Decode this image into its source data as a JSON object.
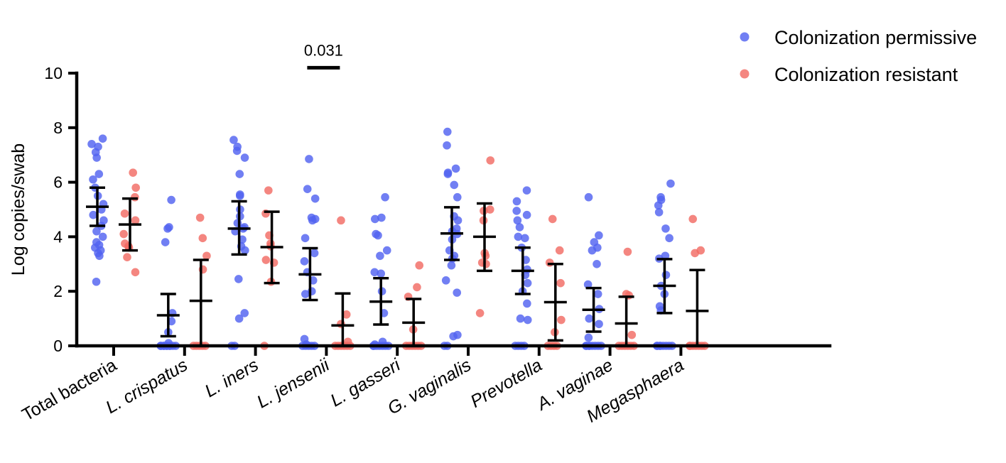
{
  "colors": {
    "permissive": "#5263f0",
    "resistant": "#f26b64"
  },
  "chart_data": {
    "type": "scatter",
    "subtype": "dot-plot-with-mean-and-error",
    "title": "",
    "ylabel": "Log copies/swab",
    "xlabel": "",
    "ylim": [
      0,
      10
    ],
    "yticks": [
      0,
      2,
      4,
      6,
      8,
      10
    ],
    "grid": false,
    "legend": {
      "placement": "top-right",
      "entries": [
        "Colonization permissive",
        "Colonization resistant"
      ]
    },
    "categories": [
      "Total bacteria",
      "L. crispatus",
      "L. iners",
      "L. jensenii",
      "L. gasseri",
      "G. vaginalis",
      "Prevotella",
      "A. vaginae",
      "Megasphaera"
    ],
    "italic_categories": [
      false,
      true,
      true,
      true,
      true,
      true,
      true,
      true,
      true
    ],
    "series": [
      {
        "name": "Colonization permissive",
        "color_key": "permissive",
        "groups": [
          {
            "mean": 5.1,
            "upper": 5.8,
            "lower": 4.4,
            "points": [
              7.6,
              7.4,
              7.3,
              7.1,
              6.9,
              6.3,
              6.1,
              5.8,
              5.5,
              5.2,
              5.0,
              4.8,
              4.6,
              4.4,
              4.2,
              4.0,
              3.8,
              3.7,
              3.6,
              3.5,
              3.4,
              3.3,
              2.35
            ]
          },
          {
            "mean": 1.12,
            "upper": 1.9,
            "lower": 0.35,
            "points": [
              5.35,
              4.35,
              4.3,
              3.8,
              1.2,
              0.9,
              0.5,
              0.1,
              0,
              0,
              0,
              0,
              0,
              0,
              0,
              0,
              0,
              0
            ]
          },
          {
            "mean": 4.3,
            "upper": 5.3,
            "lower": 3.35,
            "points": [
              7.55,
              7.3,
              7.15,
              6.9,
              6.3,
              5.55,
              5.5,
              5.0,
              4.75,
              4.5,
              4.35,
              4.3,
              4.2,
              3.9,
              3.65,
              3.5,
              2.45,
              1.2,
              1.0,
              0,
              0
            ]
          },
          {
            "mean": 2.62,
            "upper": 3.58,
            "lower": 1.68,
            "points": [
              6.85,
              5.75,
              5.4,
              4.7,
              4.65,
              4.6,
              3.95,
              3.4,
              3.1,
              2.7,
              2.4,
              2.0,
              1.9,
              0.25,
              0.05,
              0,
              0,
              0,
              0,
              0
            ]
          },
          {
            "mean": 1.62,
            "upper": 2.48,
            "lower": 0.78,
            "points": [
              5.45,
              4.7,
              4.65,
              4.1,
              4.05,
              3.5,
              3.3,
              2.7,
              2.65,
              2.0,
              1.2,
              0.15,
              0.05,
              0,
              0,
              0,
              0,
              0,
              0,
              0
            ]
          },
          {
            "mean": 4.12,
            "upper": 5.08,
            "lower": 3.15,
            "points": [
              7.85,
              7.35,
              6.5,
              6.35,
              6.3,
              5.9,
              5.45,
              4.75,
              4.6,
              4.3,
              4.2,
              4.1,
              3.9,
              3.5,
              3.3,
              3.2,
              2.95,
              2.4,
              1.95,
              0.4,
              0.35,
              0,
              0
            ]
          },
          {
            "mean": 2.75,
            "upper": 3.6,
            "lower": 1.9,
            "points": [
              5.7,
              5.3,
              4.95,
              4.8,
              4.6,
              4.35,
              4.0,
              3.95,
              3.6,
              3.15,
              2.8,
              2.6,
              2.3,
              2.0,
              1.55,
              1.0,
              0.95,
              0,
              0,
              0,
              0
            ]
          },
          {
            "mean": 1.32,
            "upper": 2.12,
            "lower": 0.52,
            "points": [
              5.45,
              4.05,
              3.8,
              3.6,
              3.5,
              3.0,
              2.25,
              1.9,
              1.35,
              1.0,
              0.8,
              0.3,
              0,
              0,
              0,
              0,
              0,
              0,
              0,
              0
            ]
          },
          {
            "mean": 2.2,
            "upper": 3.18,
            "lower": 1.2,
            "points": [
              5.95,
              5.45,
              5.35,
              5.15,
              4.9,
              4.3,
              3.95,
              3.3,
              3.2,
              2.6,
              2.2,
              1.9,
              1.45,
              1.3,
              0,
              0,
              0,
              0,
              0,
              0,
              0,
              0
            ]
          }
        ]
      },
      {
        "name": "Colonization resistant",
        "color_key": "resistant",
        "groups": [
          {
            "mean": 4.45,
            "upper": 5.4,
            "lower": 3.5,
            "points": [
              6.35,
              5.8,
              5.45,
              4.85,
              4.6,
              4.1,
              3.75,
              3.65,
              3.6,
              3.25,
              2.7
            ]
          },
          {
            "mean": 1.65,
            "upper": 3.15,
            "lower": 0.0,
            "points": [
              4.7,
              3.95,
              3.3,
              2.8,
              0,
              0,
              0,
              0,
              0
            ]
          },
          {
            "mean": 3.62,
            "upper": 4.92,
            "lower": 2.3,
            "points": [
              5.7,
              4.85,
              4.05,
              3.75,
              3.65,
              3.15,
              3.05,
              2.35,
              0.0
            ]
          },
          {
            "mean": 0.75,
            "upper": 1.92,
            "lower": 0.0,
            "points": [
              4.6,
              1.15,
              0.8,
              0.15,
              0,
              0,
              0,
              0,
              0,
              0
            ]
          },
          {
            "mean": 0.85,
            "upper": 1.72,
            "lower": 0.0,
            "points": [
              2.95,
              2.15,
              1.8,
              0.6,
              0,
              0,
              0,
              0,
              0,
              0
            ]
          },
          {
            "mean": 4.0,
            "upper": 5.22,
            "lower": 2.75,
            "points": [
              6.8,
              5.0,
              4.95,
              4.6,
              3.4,
              3.3,
              3.05,
              3.0,
              1.2
            ]
          },
          {
            "mean": 1.6,
            "upper": 3.0,
            "lower": 0.2,
            "points": [
              4.65,
              3.5,
              3.05,
              2.3,
              0.95,
              0.5,
              0,
              0,
              0,
              0
            ]
          },
          {
            "mean": 0.82,
            "upper": 1.8,
            "lower": 0.0,
            "points": [
              3.45,
              1.9,
              1.85,
              0.4,
              0,
              0,
              0,
              0,
              0,
              0
            ]
          },
          {
            "mean": 1.28,
            "upper": 2.78,
            "lower": 0.0,
            "points": [
              4.65,
              3.5,
              3.4,
              0,
              0,
              0,
              0,
              0,
              0,
              0
            ]
          }
        ]
      }
    ],
    "annotations": [
      {
        "text": "0.031",
        "category": "L. jensenii",
        "type": "significance-bar",
        "y": 10.2
      }
    ]
  }
}
